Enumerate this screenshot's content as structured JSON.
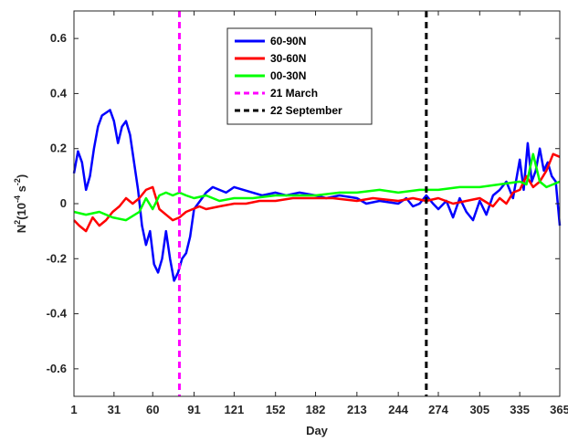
{
  "chart_data": {
    "type": "line",
    "title": "",
    "xlabel": "Day",
    "ylabel": {
      "base": "N",
      "sup1": "2",
      "mid": "(10",
      "sup2": "-4",
      "mid2": " s",
      "sup3": "-2",
      "end": ")"
    },
    "xlim": [
      1,
      365
    ],
    "ylim": [
      -0.7,
      0.7
    ],
    "xticks": [
      1,
      31,
      60,
      91,
      121,
      152,
      182,
      213,
      244,
      274,
      305,
      335,
      365
    ],
    "xtick_labels": [
      "1",
      "31",
      "60",
      "91",
      "121",
      "152",
      "182",
      "213",
      "244",
      "274",
      "305",
      "335",
      "365"
    ],
    "yticks": [
      -0.6,
      -0.4,
      -0.2,
      0,
      0.2,
      0.4,
      0.6
    ],
    "ytick_labels": [
      "-0.6",
      "-0.4",
      "-0.2",
      "0",
      "0.2",
      "0.4",
      "0.6"
    ],
    "grid": false,
    "legend_position": "top-center",
    "series": [
      {
        "name": "60-90N",
        "color": "#0000ff",
        "style": "solid",
        "x": [
          1,
          4,
          7,
          10,
          13,
          16,
          19,
          22,
          25,
          28,
          31,
          34,
          37,
          40,
          43,
          46,
          49,
          52,
          55,
          58,
          61,
          64,
          67,
          70,
          73,
          76,
          79,
          82,
          85,
          88,
          91,
          94,
          97,
          100,
          105,
          110,
          115,
          121,
          128,
          135,
          142,
          152,
          160,
          170,
          182,
          190,
          200,
          213,
          220,
          230,
          244,
          250,
          255,
          260,
          265,
          270,
          274,
          280,
          285,
          290,
          295,
          300,
          305,
          310,
          315,
          320,
          325,
          330,
          335,
          338,
          341,
          344,
          347,
          350,
          353,
          356,
          359,
          362,
          365
        ],
        "y": [
          0.11,
          0.19,
          0.15,
          0.05,
          0.1,
          0.2,
          0.28,
          0.32,
          0.33,
          0.34,
          0.3,
          0.22,
          0.28,
          0.3,
          0.25,
          0.15,
          0.05,
          -0.08,
          -0.15,
          -0.1,
          -0.22,
          -0.25,
          -0.2,
          -0.1,
          -0.2,
          -0.28,
          -0.25,
          -0.2,
          -0.18,
          -0.12,
          -0.02,
          0.0,
          0.02,
          0.04,
          0.06,
          0.05,
          0.04,
          0.06,
          0.05,
          0.04,
          0.03,
          0.04,
          0.03,
          0.04,
          0.03,
          0.02,
          0.03,
          0.02,
          0.0,
          0.01,
          0.0,
          0.02,
          -0.01,
          0.0,
          0.03,
          0.0,
          -0.02,
          0.01,
          -0.05,
          0.02,
          -0.03,
          -0.06,
          0.01,
          -0.04,
          0.03,
          0.05,
          0.08,
          0.02,
          0.16,
          0.05,
          0.22,
          0.08,
          0.12,
          0.2,
          0.12,
          0.15,
          0.1,
          0.08,
          -0.08
        ]
      },
      {
        "name": "30-60N",
        "color": "#ff0000",
        "style": "solid",
        "x": [
          1,
          5,
          10,
          15,
          20,
          25,
          30,
          35,
          40,
          45,
          50,
          55,
          60,
          65,
          70,
          75,
          80,
          85,
          90,
          95,
          100,
          110,
          121,
          130,
          140,
          152,
          165,
          182,
          195,
          213,
          225,
          244,
          255,
          265,
          274,
          285,
          295,
          305,
          315,
          320,
          325,
          330,
          335,
          340,
          345,
          350,
          355,
          360,
          365
        ],
        "y": [
          -0.06,
          -0.08,
          -0.1,
          -0.05,
          -0.08,
          -0.06,
          -0.03,
          -0.01,
          0.02,
          0.0,
          0.02,
          0.05,
          0.06,
          -0.02,
          -0.04,
          -0.06,
          -0.05,
          -0.03,
          -0.02,
          -0.01,
          -0.02,
          -0.01,
          0.0,
          0.0,
          0.01,
          0.01,
          0.02,
          0.02,
          0.02,
          0.01,
          0.02,
          0.01,
          0.02,
          0.01,
          0.02,
          0.0,
          0.01,
          0.02,
          -0.01,
          0.02,
          0.0,
          0.04,
          0.05,
          0.1,
          0.06,
          0.08,
          0.12,
          0.18,
          0.17
        ]
      },
      {
        "name": "00-30N",
        "color": "#00ff00",
        "style": "solid",
        "x": [
          1,
          10,
          20,
          30,
          40,
          50,
          55,
          60,
          65,
          70,
          75,
          80,
          85,
          91,
          100,
          110,
          121,
          135,
          152,
          165,
          182,
          200,
          213,
          230,
          244,
          260,
          274,
          290,
          305,
          320,
          335,
          340,
          345,
          350,
          355,
          360,
          365
        ],
        "y": [
          -0.03,
          -0.04,
          -0.03,
          -0.05,
          -0.06,
          -0.03,
          0.02,
          -0.02,
          0.03,
          0.04,
          0.03,
          0.04,
          0.03,
          0.02,
          0.03,
          0.01,
          0.02,
          0.02,
          0.03,
          0.03,
          0.03,
          0.04,
          0.04,
          0.05,
          0.04,
          0.05,
          0.05,
          0.06,
          0.06,
          0.07,
          0.08,
          0.07,
          0.18,
          0.08,
          0.06,
          0.07,
          0.08
        ]
      },
      {
        "name": "21 March",
        "color": "#ff00ff",
        "style": "dashed",
        "vline": 80
      },
      {
        "name": "22 September",
        "color": "#000000",
        "style": "dashed",
        "vline": 265
      }
    ]
  }
}
